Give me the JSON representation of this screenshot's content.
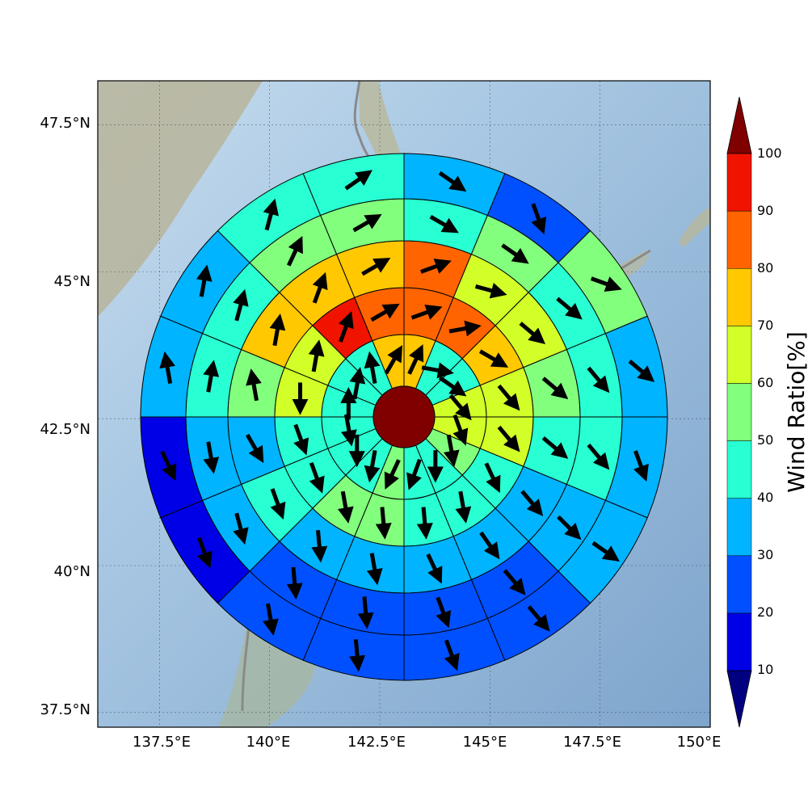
{
  "map": {
    "lat_ticks": [
      "47.5°N",
      "45°N",
      "42.5°N",
      "40°N",
      "37.5°N"
    ],
    "lon_ticks": [
      "137.5°E",
      "140°E",
      "142.5°E",
      "145°E",
      "147.5°E",
      "150°E"
    ],
    "extent": {
      "lon": [
        136.1,
        150.0
      ],
      "lat": [
        37.25,
        48.25
      ]
    },
    "center": {
      "lon": 143.0,
      "lat": 42.7
    }
  },
  "colorbar": {
    "title": "Wind Ratio[%]",
    "tick_labels": [
      "10",
      "20",
      "30",
      "40",
      "50",
      "60",
      "70",
      "80",
      "90",
      "100"
    ],
    "bins": [
      {
        "min": 10,
        "max": 20,
        "color": "#0000e6"
      },
      {
        "min": 20,
        "max": 30,
        "color": "#0050ff"
      },
      {
        "min": 30,
        "max": 40,
        "color": "#00b4ff"
      },
      {
        "min": 40,
        "max": 50,
        "color": "#28ffd2"
      },
      {
        "min": 50,
        "max": 60,
        "color": "#82ff7d"
      },
      {
        "min": 60,
        "max": 70,
        "color": "#d2ff28"
      },
      {
        "min": 70,
        "max": 80,
        "color": "#ffc800"
      },
      {
        "min": 80,
        "max": 90,
        "color": "#ff6400"
      },
      {
        "min": 90,
        "max": 100,
        "color": "#f01400"
      }
    ],
    "under_color": "#000080",
    "over_color": "#800000"
  },
  "core_color": "#800000",
  "chart_data": {
    "type": "polar-sector-map",
    "value_unit": "%",
    "sectors_per_ring": 16,
    "sector_start_deg_clockwise_from_north": 0,
    "rings": [
      {
        "ring": 1,
        "values": [
          75,
          45,
          45,
          65,
          65,
          55,
          45,
          45,
          55,
          45,
          45,
          45,
          45,
          45,
          45,
          75
        ],
        "wind_deg": [
          25,
          100,
          125,
          140,
          160,
          170,
          180,
          200,
          205,
          190,
          180,
          170,
          0,
          10,
          350,
          30
        ]
      },
      {
        "ring": 2,
        "values": [
          85,
          85,
          75,
          65,
          65,
          45,
          45,
          45,
          55,
          55,
          45,
          45,
          65,
          65,
          95,
          85
        ],
        "wind_deg": [
          70,
          80,
          120,
          140,
          140,
          155,
          170,
          175,
          175,
          170,
          160,
          160,
          180,
          10,
          20,
          60
        ]
      },
      {
        "ring": 3,
        "values": [
          85,
          65,
          65,
          55,
          45,
          35,
          35,
          35,
          35,
          35,
          45,
          35,
          55,
          75,
          75,
          75
        ],
        "wind_deg": [
          70,
          105,
          130,
          130,
          130,
          140,
          145,
          155,
          170,
          175,
          160,
          150,
          350,
          10,
          20,
          60
        ]
      },
      {
        "ring": 4,
        "values": [
          45,
          55,
          45,
          45,
          45,
          35,
          25,
          25,
          25,
          25,
          35,
          35,
          45,
          45,
          55,
          55
        ],
        "wind_deg": [
          120,
          125,
          130,
          140,
          140,
          135,
          140,
          160,
          175,
          175,
          165,
          170,
          10,
          15,
          25,
          60
        ]
      },
      {
        "ring": 5,
        "values": [
          35,
          25,
          55,
          35,
          35,
          35,
          25,
          25,
          25,
          25,
          15,
          15,
          35,
          35,
          45,
          45
        ],
        "wind_deg": [
          125,
          160,
          110,
          130,
          160,
          125,
          140,
          160,
          175,
          170,
          160,
          155,
          350,
          10,
          15,
          55
        ]
      }
    ]
  }
}
